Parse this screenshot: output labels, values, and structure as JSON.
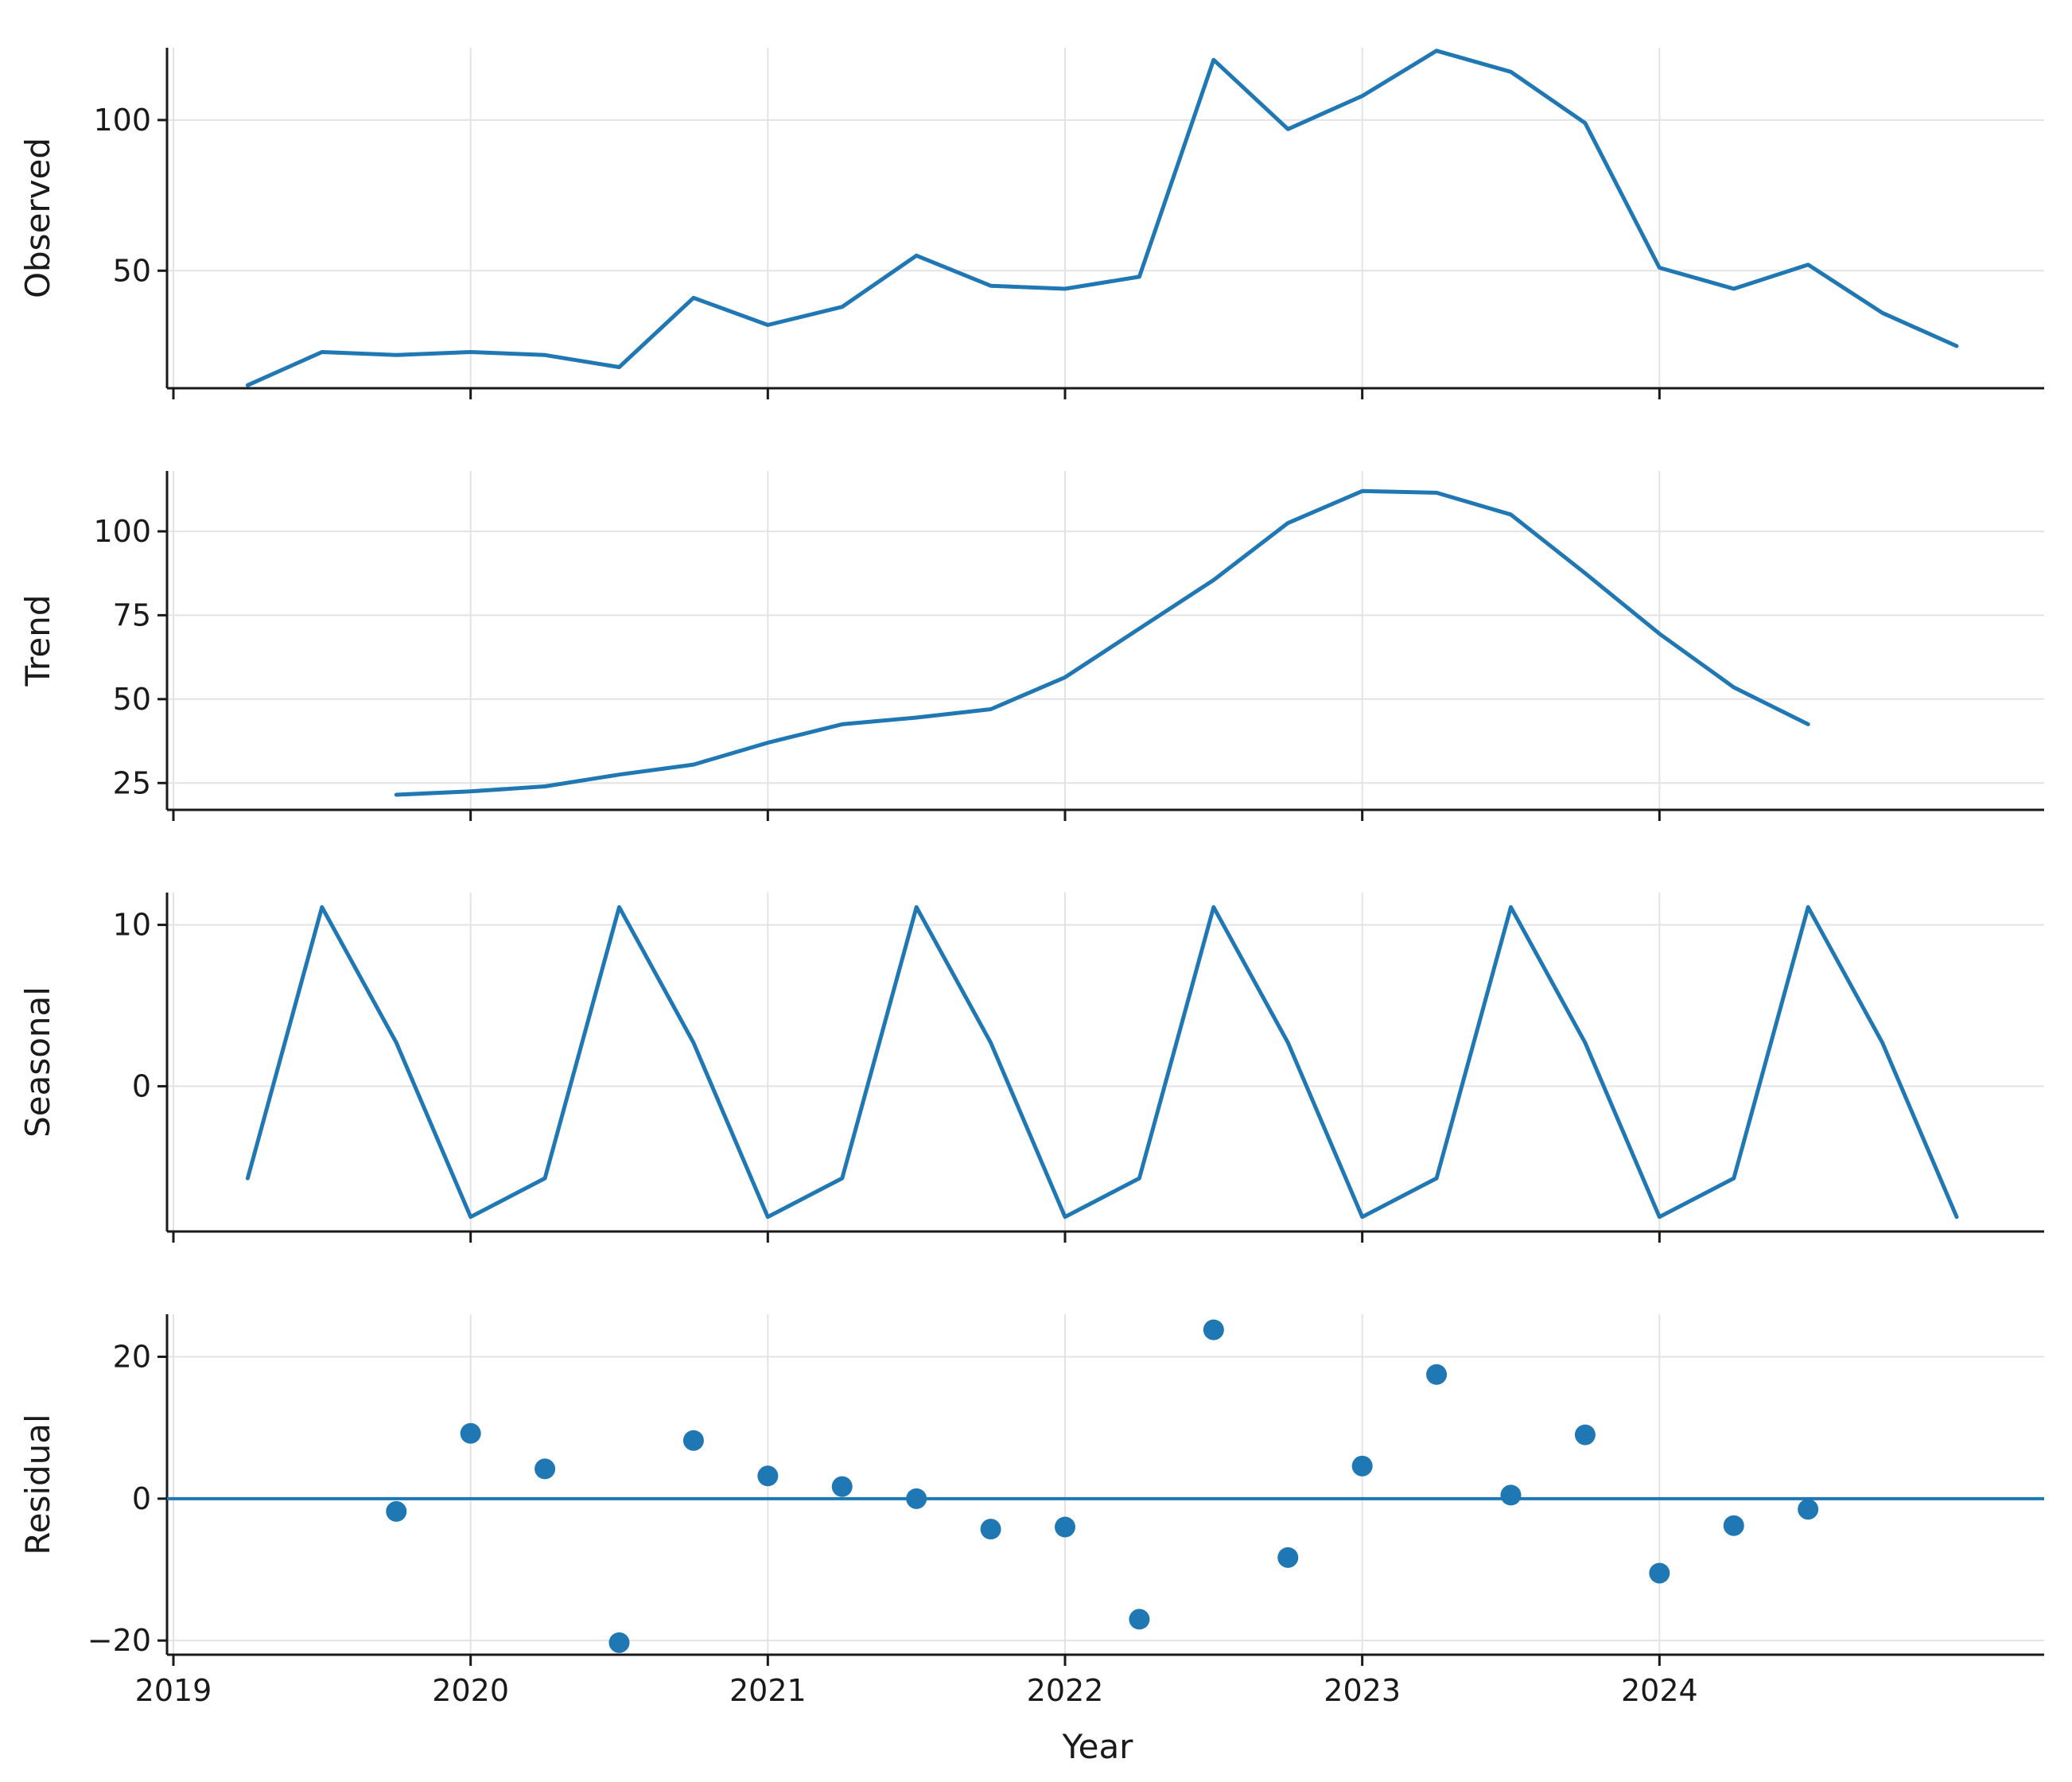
{
  "chart_data": {
    "type": "line",
    "xlabel": "Year",
    "x_ticks": [
      "2019",
      "2020",
      "2021",
      "2022",
      "2023",
      "2024"
    ],
    "xlim": [
      2019.0,
      2025.0
    ],
    "color": "#1f77b4",
    "grid": true,
    "panels": [
      {
        "ylabel": "Observed",
        "kind": "line",
        "ylim": [
          11,
          124
        ],
        "yticks": [
          50,
          100
        ],
        "x": [
          2019.25,
          2019.5,
          2019.75,
          2020.0,
          2020.25,
          2020.5,
          2020.75,
          2021.0,
          2021.25,
          2021.5,
          2021.75,
          2022.0,
          2022.25,
          2022.5,
          2022.75,
          2023.0,
          2023.25,
          2023.5,
          2023.75,
          2024.0,
          2024.25,
          2024.5,
          2024.75,
          2025.0
        ],
        "values": [
          12,
          23,
          22,
          23,
          22,
          18,
          41,
          32,
          38,
          55,
          45,
          44,
          48,
          120,
          97,
          108,
          123,
          116,
          99,
          51,
          44,
          52,
          36,
          25
        ]
      },
      {
        "ylabel": "Trend",
        "kind": "line",
        "ylim": [
          17,
          118
        ],
        "yticks": [
          25,
          50,
          75,
          100
        ],
        "x": [
          2019.75,
          2020.0,
          2020.25,
          2020.5,
          2020.75,
          2021.0,
          2021.25,
          2021.5,
          2021.75,
          2022.0,
          2022.25,
          2022.5,
          2022.75,
          2023.0,
          2023.25,
          2023.5,
          2023.75,
          2024.0,
          2024.25,
          2024.5
        ],
        "values": [
          21.5,
          22.5,
          24,
          27.5,
          30.5,
          37,
          42.5,
          44.5,
          47,
          56.5,
          71,
          85.5,
          102.5,
          112,
          111.5,
          105,
          87.5,
          69.5,
          53.5,
          42.5
        ]
      },
      {
        "ylabel": "Seasonal",
        "kind": "line",
        "ylim": [
          -9,
          12
        ],
        "yticks": [
          0,
          10
        ],
        "x": [
          2019.25,
          2019.5,
          2019.75,
          2020.0,
          2020.25,
          2020.5,
          2020.75,
          2021.0,
          2021.25,
          2021.5,
          2021.75,
          2022.0,
          2022.25,
          2022.5,
          2022.75,
          2023.0,
          2023.25,
          2023.5,
          2023.75,
          2024.0,
          2024.25,
          2024.5,
          2024.75,
          2025.0
        ],
        "values": [
          -5.7,
          11.1,
          2.7,
          -8.1,
          -5.7,
          11.1,
          2.7,
          -8.1,
          -5.7,
          11.1,
          2.7,
          -8.1,
          -5.7,
          11.1,
          2.7,
          -8.1,
          -5.7,
          11.1,
          2.7,
          -8.1,
          -5.7,
          11.1,
          2.7,
          -8.1
        ]
      },
      {
        "ylabel": "Residual",
        "kind": "scatter",
        "ylim": [
          -22,
          26
        ],
        "yticks": [
          -20,
          0,
          20
        ],
        "zero_line": true,
        "x": [
          2019.75,
          2020.0,
          2020.25,
          2020.5,
          2020.75,
          2021.0,
          2021.25,
          2021.5,
          2021.75,
          2022.0,
          2022.25,
          2022.5,
          2022.75,
          2023.0,
          2023.25,
          2023.5,
          2023.75,
          2024.0,
          2024.25,
          2024.5
        ],
        "values": [
          -1.8,
          9.2,
          4.2,
          -20.3,
          8.2,
          3.2,
          1.7,
          0,
          -4.3,
          -4,
          -17,
          23.8,
          -8.3,
          4.6,
          17.5,
          0.5,
          9,
          -10.5,
          -3.8,
          -1.5
        ]
      }
    ]
  }
}
